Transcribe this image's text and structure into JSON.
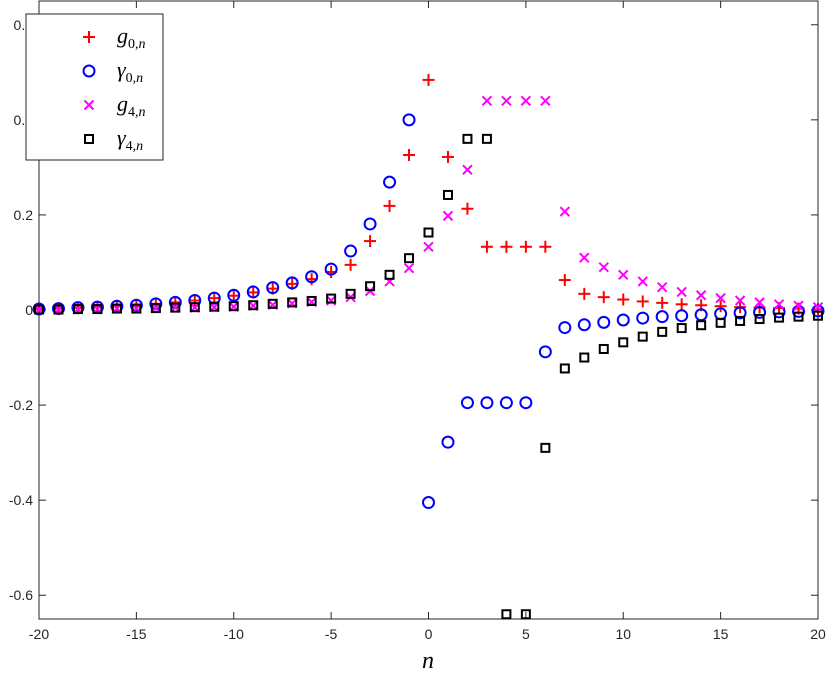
{
  "chart_data": {
    "type": "scatter",
    "title": "",
    "xlabel": "n",
    "ylabel": "",
    "xlim": [
      -20,
      20
    ],
    "ylim": [
      -0.65,
      0.65
    ],
    "xticks": [
      -20,
      -15,
      -10,
      -5,
      0,
      5,
      10,
      15,
      20
    ],
    "xtick_labels": [
      "-20",
      "-15",
      "-10",
      "-5",
      "0",
      "5",
      "10",
      "15",
      "20"
    ],
    "yticks": [
      -0.6,
      -0.4,
      -0.2,
      0,
      0.2,
      0.4,
      0.6
    ],
    "ytick_labels": [
      "-0.6",
      "-0.4",
      "-0.2",
      "0",
      "0.2",
      "0.4",
      "0.6"
    ],
    "grid": false,
    "legend_position": "top-left",
    "x": [
      -20,
      -19,
      -18,
      -17,
      -16,
      -15,
      -14,
      -13,
      -12,
      -11,
      -10,
      -9,
      -8,
      -7,
      -6,
      -5,
      -4,
      -3,
      -2,
      -1,
      0,
      1,
      2,
      3,
      4,
      5,
      6,
      7,
      8,
      9,
      10,
      11,
      12,
      13,
      14,
      15,
      16,
      17,
      18,
      19,
      20
    ],
    "series": [
      {
        "name": "g_{0,n}",
        "base": "g",
        "sub": "0,",
        "marker": "plus",
        "color": "#ff0000",
        "values": [
          0.002,
          0.003,
          0.004,
          0.006,
          0.008,
          0.01,
          0.013,
          0.016,
          0.02,
          0.025,
          0.03,
          0.037,
          0.045,
          0.055,
          0.065,
          0.08,
          0.095,
          0.145,
          0.219,
          0.326,
          0.484,
          0.322,
          0.213,
          0.133,
          0.133,
          0.133,
          0.133,
          0.063,
          0.034,
          0.027,
          0.022,
          0.018,
          0.015,
          0.012,
          0.01,
          0.008,
          0.006,
          0.005,
          0.004,
          0.003,
          0.002
        ]
      },
      {
        "name": "γ_{0,n}",
        "base": "γ",
        "sub": "0,",
        "marker": "circle",
        "color": "#0000ff",
        "values": [
          0.002,
          0.003,
          0.005,
          0.006,
          0.008,
          0.01,
          0.013,
          0.016,
          0.02,
          0.025,
          0.031,
          0.038,
          0.047,
          0.057,
          0.07,
          0.086,
          0.124,
          0.181,
          0.269,
          0.4,
          -0.405,
          -0.278,
          -0.195,
          -0.195,
          -0.195,
          -0.195,
          -0.088,
          -0.037,
          -0.031,
          -0.026,
          -0.021,
          -0.017,
          -0.014,
          -0.012,
          -0.01,
          -0.008,
          -0.006,
          -0.005,
          -0.004,
          -0.003,
          -0.002
        ]
      },
      {
        "name": "g_{4,n}",
        "base": "g",
        "sub": "4,",
        "marker": "x",
        "color": "#ff00ff",
        "values": [
          0.001,
          0.001,
          0.002,
          0.002,
          0.003,
          0.003,
          0.004,
          0.005,
          0.005,
          0.006,
          0.007,
          0.009,
          0.011,
          0.014,
          0.017,
          0.02,
          0.027,
          0.04,
          0.06,
          0.088,
          0.133,
          0.198,
          0.295,
          0.44,
          0.44,
          0.44,
          0.44,
          0.207,
          0.11,
          0.09,
          0.074,
          0.06,
          0.048,
          0.038,
          0.031,
          0.025,
          0.02,
          0.016,
          0.012,
          0.009,
          0.006
        ]
      },
      {
        "name": "γ_{4,n}",
        "base": "γ",
        "sub": "4,",
        "marker": "square",
        "color": "#000000",
        "values": [
          0.001,
          0.001,
          0.002,
          0.002,
          0.003,
          0.003,
          0.004,
          0.005,
          0.006,
          0.007,
          0.008,
          0.01,
          0.013,
          0.016,
          0.019,
          0.024,
          0.034,
          0.05,
          0.074,
          0.109,
          0.163,
          0.242,
          0.36,
          0.36,
          -0.64,
          -0.64,
          -0.29,
          -0.123,
          -0.1,
          -0.082,
          -0.068,
          -0.056,
          -0.046,
          -0.038,
          -0.032,
          -0.027,
          -0.023,
          -0.019,
          -0.016,
          -0.014,
          -0.012
        ]
      }
    ]
  }
}
